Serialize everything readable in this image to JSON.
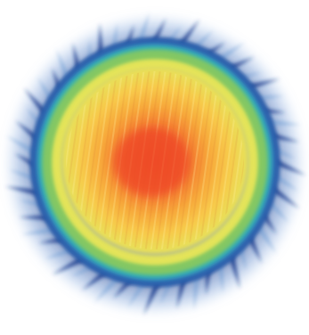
{
  "image": {
    "subject": "thermal-heatmap-disc",
    "palette": {
      "background": "#ffffff",
      "outer_fringe_dark": "#1e3f8f",
      "outer_fringe_light": "#6f9fd6",
      "ring_cyan": "#35b3b2",
      "ring_green": "#67c36a",
      "ring_yellow": "#dfe35a",
      "inner_orange": "#f7ad3a",
      "core_red": "#f05a2d"
    },
    "colormap_order": [
      "blue",
      "cyan",
      "green",
      "yellow",
      "orange",
      "red"
    ],
    "fringe_spike_count": 56
  }
}
